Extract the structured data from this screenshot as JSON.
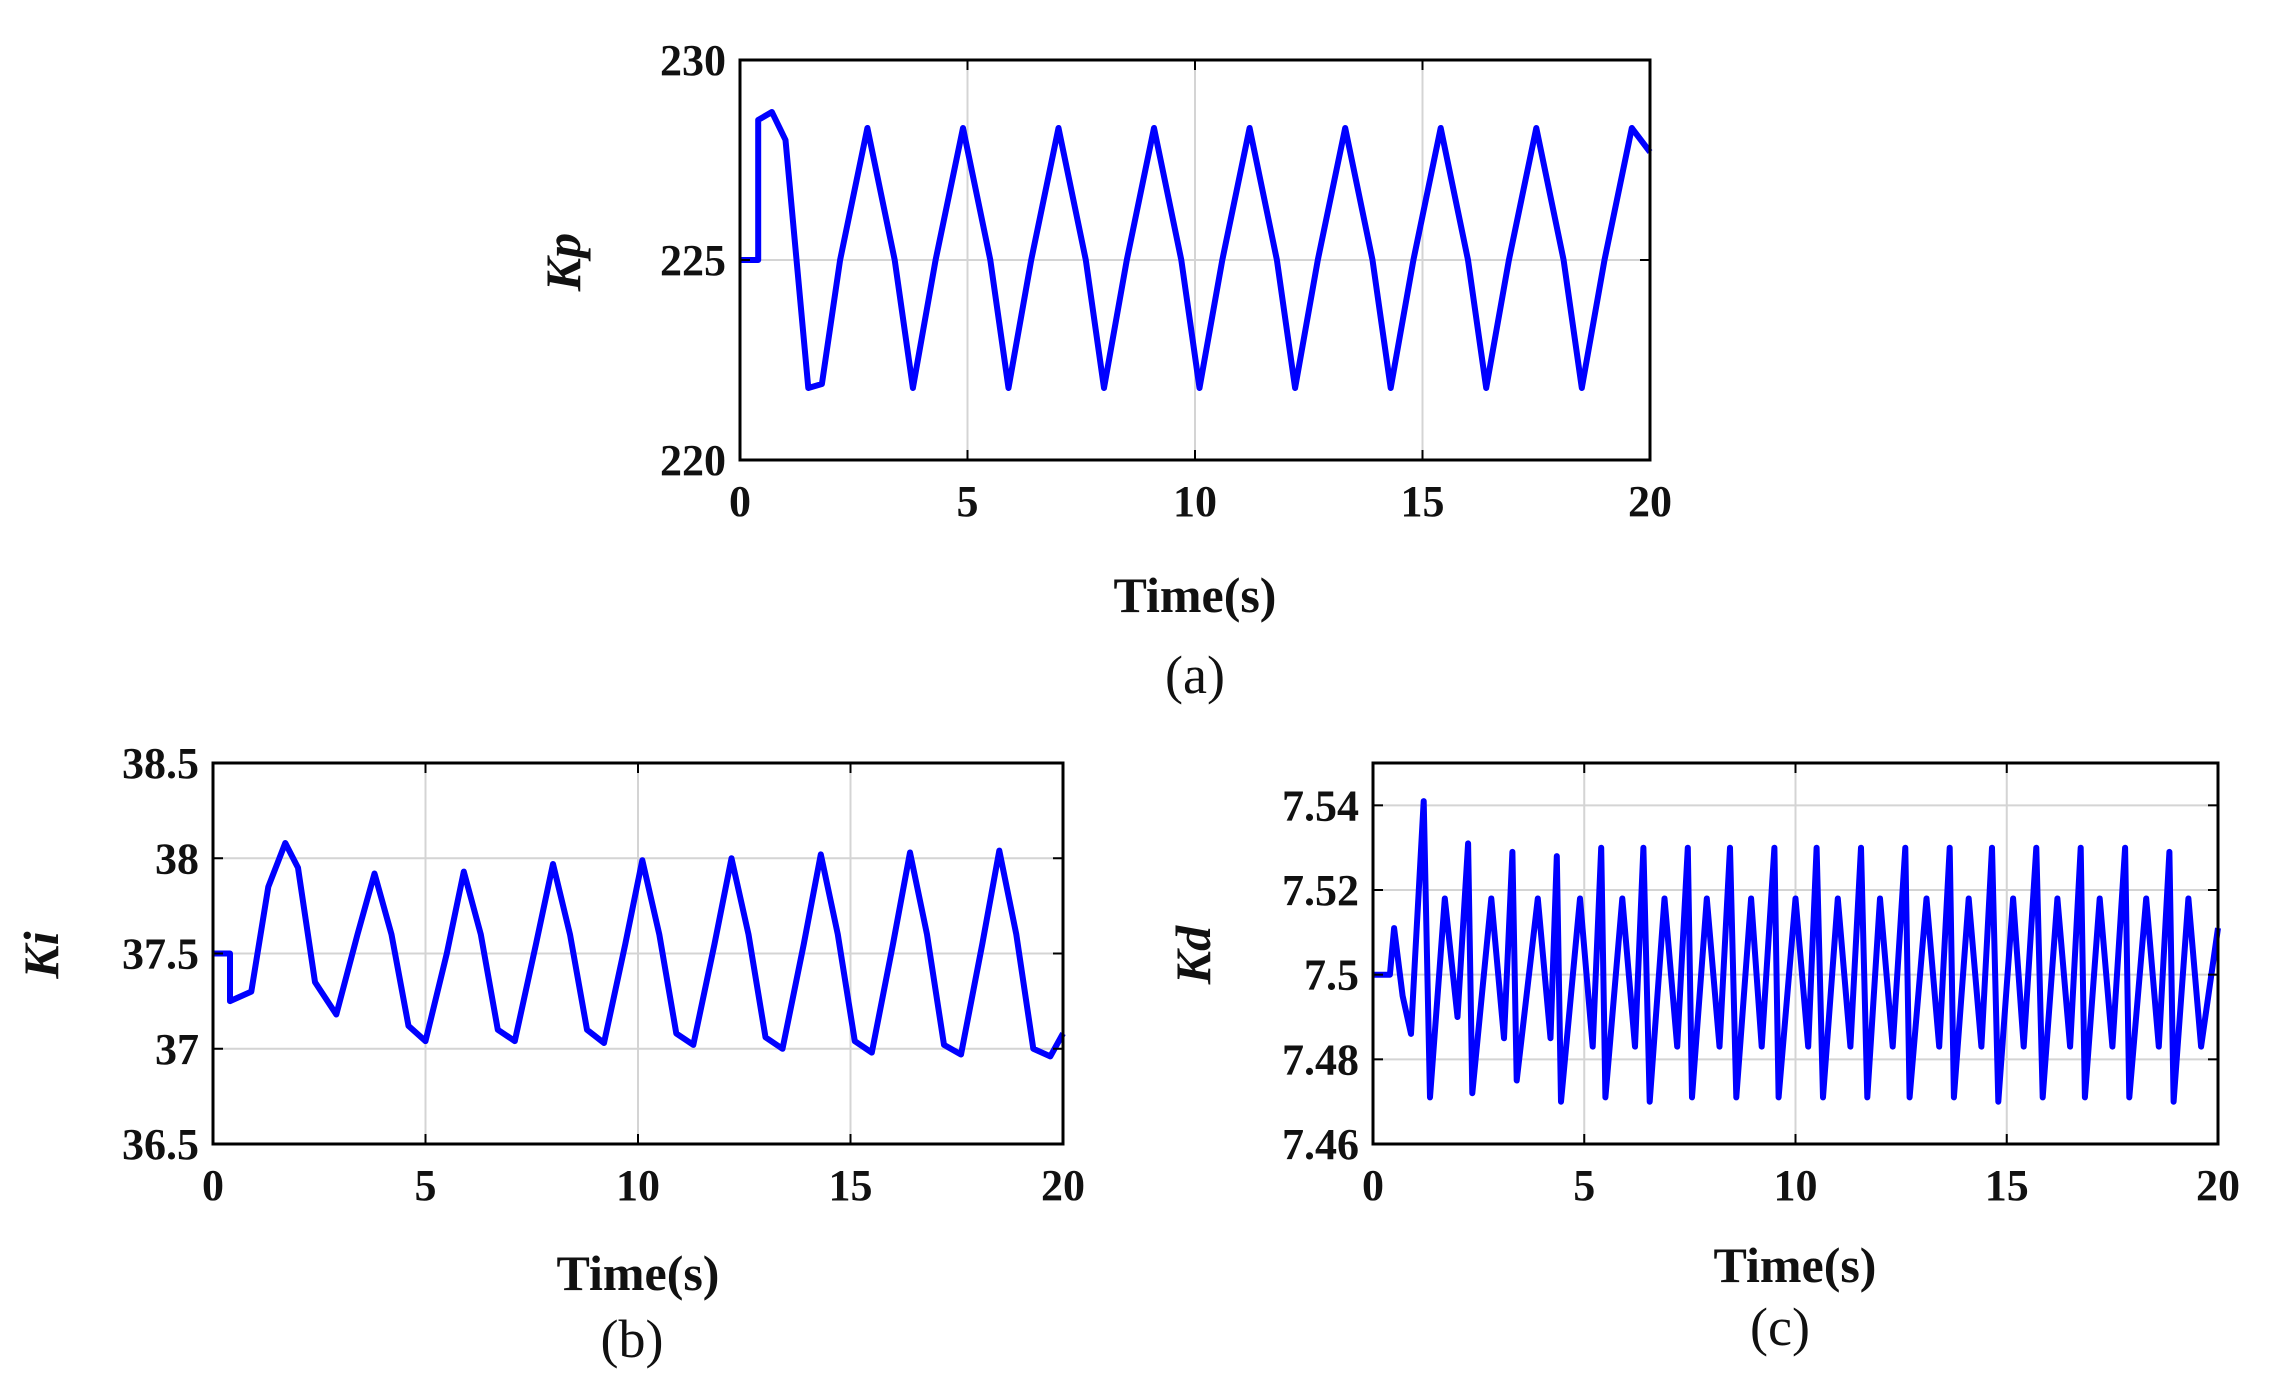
{
  "figure": {
    "captions": [
      "(a)",
      "(b)",
      "(c)"
    ]
  },
  "series_color": "#0000ff",
  "chart_data": [
    {
      "type": "line",
      "panel": "(a)",
      "xlabel": "Time(s)",
      "ylabel": "Kp",
      "xlim": [
        0,
        20
      ],
      "ylim": [
        220,
        230
      ],
      "xticks": [
        "0",
        "5",
        "10",
        "15",
        "20"
      ],
      "yticks": [
        "220",
        "225",
        "230"
      ],
      "grid": true,
      "series": [
        {
          "x": [
            0,
            0.4,
            0.4,
            0.7,
            1.0,
            1.5,
            1.8,
            2.2,
            2.8,
            3.4,
            3.8,
            4.3,
            4.9,
            5.5,
            5.9,
            6.4,
            7.0,
            7.6,
            8.0,
            8.5,
            9.1,
            9.7,
            10.1,
            10.6,
            11.2,
            11.8,
            12.2,
            12.7,
            13.3,
            13.9,
            14.3,
            14.8,
            15.4,
            16.0,
            16.4,
            16.9,
            17.5,
            18.1,
            18.5,
            19.0,
            19.6,
            20.0
          ],
          "y": [
            225,
            225,
            228.5,
            228.7,
            228.0,
            221.8,
            221.9,
            225,
            228.3,
            225,
            221.8,
            225,
            228.3,
            225,
            221.8,
            225,
            228.3,
            225,
            221.8,
            225,
            228.3,
            225,
            221.8,
            225,
            228.3,
            225,
            221.8,
            225,
            228.3,
            225,
            221.8,
            225,
            228.3,
            225,
            221.8,
            225,
            228.3,
            225,
            221.8,
            225,
            228.3,
            227.7
          ]
        }
      ]
    },
    {
      "type": "line",
      "panel": "(b)",
      "xlabel": "Time(s)",
      "ylabel": "Ki",
      "xlim": [
        0,
        20
      ],
      "ylim": [
        36.5,
        38.5
      ],
      "xticks": [
        "0",
        "5",
        "10",
        "15",
        "20"
      ],
      "yticks": [
        "36.5",
        "37",
        "37.5",
        "38",
        "38.5"
      ],
      "grid": true,
      "series": [
        {
          "x": [
            0,
            0.4,
            0.4,
            0.9,
            1.3,
            1.7,
            2.0,
            2.4,
            2.9,
            3.4,
            3.8,
            4.2,
            4.6,
            5.0,
            5.5,
            5.9,
            6.3,
            6.7,
            7.1,
            7.6,
            8.0,
            8.4,
            8.8,
            9.2,
            9.7,
            10.1,
            10.5,
            10.9,
            11.3,
            11.8,
            12.2,
            12.6,
            13.0,
            13.4,
            13.9,
            14.3,
            14.7,
            15.1,
            15.5,
            16.0,
            16.4,
            16.8,
            17.2,
            17.6,
            18.1,
            18.5,
            18.9,
            19.3,
            19.7,
            20.0
          ],
          "y": [
            37.5,
            37.5,
            37.25,
            37.3,
            37.85,
            38.08,
            37.95,
            37.35,
            37.18,
            37.6,
            37.92,
            37.6,
            37.12,
            37.04,
            37.5,
            37.93,
            37.6,
            37.1,
            37.04,
            37.55,
            37.97,
            37.6,
            37.1,
            37.03,
            37.55,
            37.99,
            37.6,
            37.08,
            37.02,
            37.55,
            38.0,
            37.6,
            37.06,
            37.0,
            37.55,
            38.02,
            37.6,
            37.04,
            36.98,
            37.55,
            38.03,
            37.6,
            37.02,
            36.97,
            37.55,
            38.04,
            37.6,
            37.0,
            36.96,
            37.08
          ]
        }
      ]
    },
    {
      "type": "line",
      "panel": "(c)",
      "xlabel": "Time(s)",
      "ylabel": "Kd",
      "xlim": [
        0,
        20
      ],
      "ylim": [
        7.46,
        7.55
      ],
      "xticks": [
        "0",
        "5",
        "10",
        "15",
        "20"
      ],
      "yticks": [
        "7.46",
        "7.48",
        "7.5",
        "7.52",
        "7.54"
      ],
      "grid": true,
      "series": [
        {
          "x": [
            0,
            0.4,
            0.5,
            0.7,
            0.9,
            1.0,
            1.2,
            1.35,
            1.7,
            2.0,
            2.25,
            2.35,
            2.8,
            3.1,
            3.3,
            3.4,
            3.9,
            4.2,
            4.35,
            4.45,
            4.9,
            5.2,
            5.4,
            5.5,
            5.9,
            6.2,
            6.4,
            6.55,
            6.9,
            7.2,
            7.45,
            7.55,
            7.9,
            8.2,
            8.45,
            8.6,
            8.95,
            9.2,
            9.5,
            9.6,
            10.0,
            10.3,
            10.5,
            10.65,
            11.0,
            11.3,
            11.55,
            11.7,
            12.0,
            12.3,
            12.6,
            12.7,
            13.1,
            13.4,
            13.65,
            13.75,
            14.1,
            14.4,
            14.65,
            14.8,
            15.15,
            15.4,
            15.7,
            15.85,
            16.2,
            16.5,
            16.75,
            16.85,
            17.2,
            17.5,
            17.8,
            17.9,
            18.3,
            18.6,
            18.85,
            18.95,
            19.3,
            19.6,
            20.0
          ],
          "y": [
            7.5,
            7.5,
            7.511,
            7.495,
            7.486,
            7.505,
            7.541,
            7.471,
            7.518,
            7.49,
            7.531,
            7.472,
            7.518,
            7.485,
            7.529,
            7.475,
            7.518,
            7.485,
            7.528,
            7.47,
            7.518,
            7.483,
            7.53,
            7.471,
            7.518,
            7.483,
            7.53,
            7.47,
            7.518,
            7.483,
            7.53,
            7.471,
            7.518,
            7.483,
            7.53,
            7.471,
            7.518,
            7.483,
            7.53,
            7.471,
            7.518,
            7.483,
            7.53,
            7.471,
            7.518,
            7.483,
            7.53,
            7.471,
            7.518,
            7.483,
            7.53,
            7.471,
            7.518,
            7.483,
            7.53,
            7.471,
            7.518,
            7.483,
            7.53,
            7.47,
            7.518,
            7.483,
            7.53,
            7.471,
            7.518,
            7.483,
            7.53,
            7.471,
            7.518,
            7.483,
            7.53,
            7.471,
            7.518,
            7.483,
            7.529,
            7.47,
            7.518,
            7.483,
            7.511
          ]
        }
      ]
    }
  ]
}
